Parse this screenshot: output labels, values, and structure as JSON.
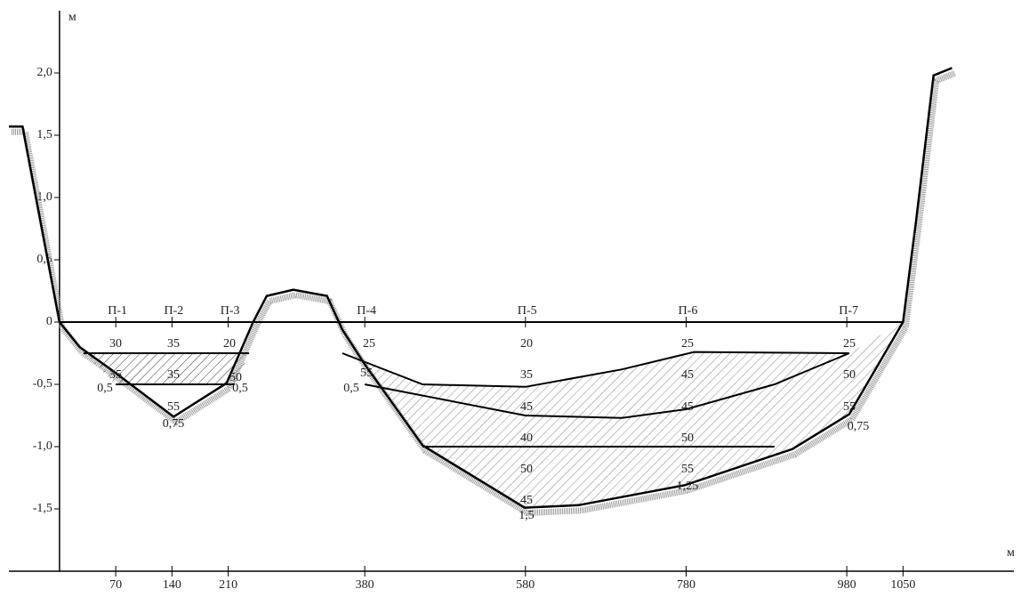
{
  "chart_data": {
    "type": "line",
    "y_unit": "м",
    "x_unit": "м",
    "xlim": [
      -63,
      1188
    ],
    "ylim": [
      -2,
      2.5
    ],
    "xticks": [
      70,
      140,
      210,
      380,
      580,
      780,
      980,
      1050
    ],
    "yticks": [
      {
        "value": 2,
        "label": "2,0"
      },
      {
        "value": 1.5,
        "label": "1,5"
      },
      {
        "value": 1,
        "label": "1,0"
      },
      {
        "value": 0.5,
        "label": "0,5"
      },
      0,
      {
        "value": -0.5,
        "label": "-0,5"
      },
      {
        "value": -1,
        "label": "-1,0"
      },
      {
        "value": -1.5,
        "label": "-1,5"
      }
    ],
    "stations": {
      "labels": [
        "П-1",
        "П-2",
        "П-3",
        "П-4",
        "П-5",
        "П-6",
        "П-7"
      ],
      "x": [
        70,
        140,
        210,
        380,
        580,
        780,
        980
      ]
    },
    "series": [
      {
        "color": "#000000",
        "x": [
          -63,
          -46,
          0,
          25,
          64,
          142,
          208,
          241,
          258,
          291,
          333,
          352,
          380,
          452,
          579,
          646,
          778,
          912,
          983,
          1050,
          1066,
          1088,
          1111
        ],
        "values": [
          1.57,
          1.57,
          0,
          -0.2,
          -0.38,
          -0.76,
          -0.49,
          0,
          0.21,
          0.26,
          0.21,
          -0.06,
          -0.34,
          -0.99,
          -1.49,
          -1.47,
          -1.31,
          -1.02,
          -0.74,
          0,
          0.8,
          1.98,
          2.04
        ]
      },
      {
        "color": "#000000",
        "x": [
          0,
          1050
        ],
        "values": [
          0,
          0
        ]
      },
      {
        "color": "#000000",
        "x": [
          30,
          236
        ],
        "values": [
          -0.25,
          -0.25
        ]
      },
      {
        "color": "#000000",
        "x": [
          70,
          218
        ],
        "values": [
          -0.5,
          -0.5
        ]
      },
      {
        "color": "#000000",
        "x": [
          352,
          452,
          580,
          700,
          790,
          983
        ],
        "values": [
          -0.25,
          -0.5,
          -0.52,
          -0.38,
          -0.24,
          -0.25
        ]
      },
      {
        "color": "#000000",
        "x": [
          380,
          580,
          700,
          780,
          890,
          983
        ],
        "values": [
          -0.5,
          -0.75,
          -0.77,
          -0.7,
          -0.5,
          -0.25
        ]
      },
      {
        "color": "#000000",
        "x": [
          452,
          890
        ],
        "values": [
          -1,
          -1
        ]
      }
    ],
    "annotations": [
      "30",
      "35",
      "20",
      "35",
      "35",
      "50",
      "0,5",
      "0,5",
      "55",
      "0,75",
      "25",
      "55",
      "0,5",
      "20",
      "35",
      "45",
      "40",
      "50",
      "45",
      "1,5",
      "25",
      "45",
      "45",
      "50",
      "55",
      "1,25",
      "25",
      "50",
      "55",
      "0,75"
    ]
  }
}
